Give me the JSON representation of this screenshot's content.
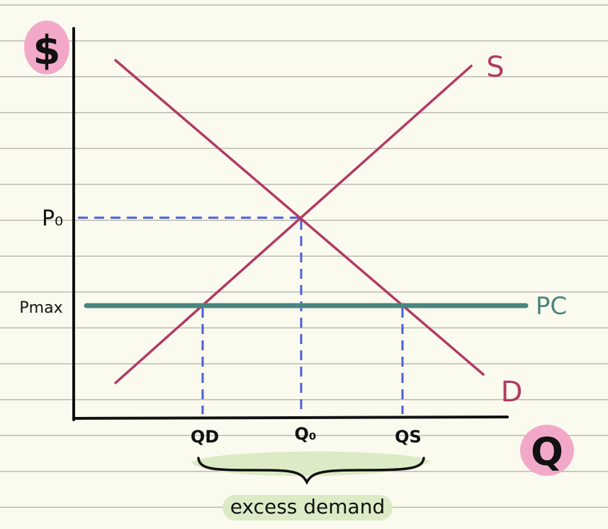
{
  "labels": {
    "y_axis": "$",
    "x_axis": "Q",
    "supply": "S",
    "demand": "D",
    "price_ceiling": "PC",
    "p0": "P₀",
    "pmax": "Pmax",
    "qd": "QD",
    "q0": "Q₀",
    "qs": "QS",
    "brace_caption": "excess demand"
  },
  "colors": {
    "background": "#fbfaee",
    "ruled_lines": "#b9b9b3",
    "axes": "#111111",
    "supply_demand": "#b23a63",
    "price_ceiling": "#4a8580",
    "guides": "#4b5fd6",
    "axis_highlight": "#f2a9c9",
    "caption_highlight": "#dcebc6"
  }
}
